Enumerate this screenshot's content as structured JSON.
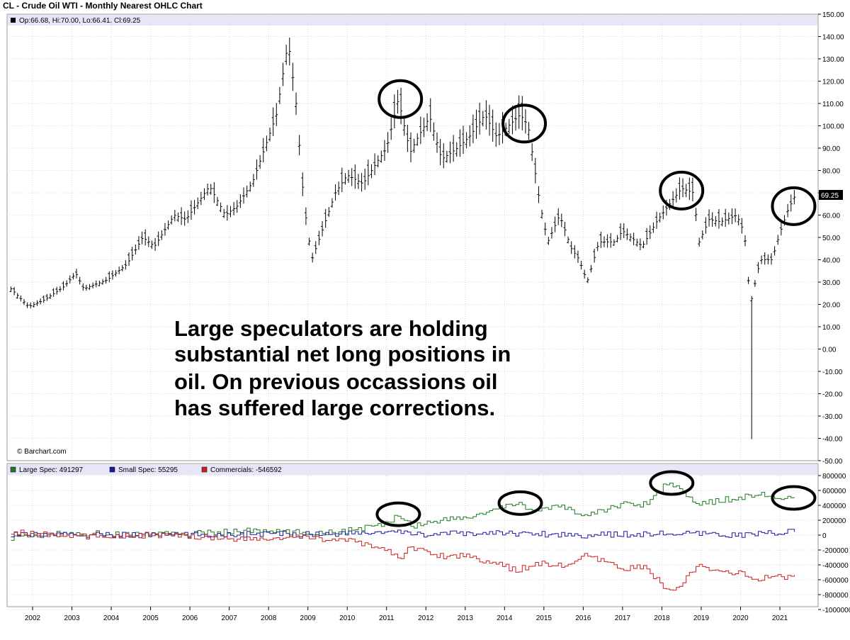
{
  "title": "CL - Crude Oil WTI - Monthly Nearest OHLC Chart",
  "ohlc_readout": "Op:66.68, Hi:70.00, Lo:66.41, Cl:69.25",
  "last_price_label": "69.25",
  "watermark": "© Barchart.com",
  "annotation_lines": [
    "Large speculators are holding",
    "substantial net long positions in",
    "oil. On previous occassions oil",
    "has suffered large corrections."
  ],
  "legend": [
    {
      "label": "Large Spec: 491297",
      "color": "#1f7a1f"
    },
    {
      "label": "Small Spec: 55295",
      "color": "#1a1aa0"
    },
    {
      "label": "Commercials: -546592",
      "color": "#cc1f1f"
    }
  ],
  "colors": {
    "header_band": "#e6e6f8",
    "grid": "#d9d9d9",
    "bars": "#000000",
    "circle": "#000000"
  },
  "chart_data": [
    {
      "type": "ohlc",
      "title": "CL - Crude Oil WTI - Monthly Nearest OHLC Chart",
      "ylim": [
        -50,
        150
      ],
      "y_ticks": [
        "150.00",
        "140.00",
        "130.00",
        "120.00",
        "110.00",
        "100.00",
        "90.00",
        "80.00",
        "70.00",
        "60.00",
        "50.00",
        "40.00",
        "30.00",
        "20.00",
        "10.00",
        "0.00",
        "-10.00",
        "-20.00",
        "-30.00",
        "-40.00",
        "-50.00"
      ],
      "x_ticks": [
        "2002",
        "2003",
        "2004",
        "2005",
        "2006",
        "2007",
        "2008",
        "2009",
        "2010",
        "2011",
        "2012",
        "2013",
        "2014",
        "2015",
        "2016",
        "2017",
        "2018",
        "2019",
        "2020",
        "2021"
      ],
      "x_start_year": 2001.45,
      "close_path": [
        [
          2001.45,
          27
        ],
        [
          2001.9,
          19
        ],
        [
          2002.3,
          22
        ],
        [
          2002.8,
          28
        ],
        [
          2003.1,
          34
        ],
        [
          2003.3,
          27
        ],
        [
          2003.9,
          31
        ],
        [
          2004.4,
          38
        ],
        [
          2004.8,
          50
        ],
        [
          2005.1,
          46
        ],
        [
          2005.6,
          60
        ],
        [
          2005.9,
          58
        ],
        [
          2006.5,
          73
        ],
        [
          2006.9,
          60
        ],
        [
          2007.2,
          64
        ],
        [
          2007.6,
          75
        ],
        [
          2007.9,
          90
        ],
        [
          2008.2,
          105
        ],
        [
          2008.5,
          138
        ],
        [
          2008.7,
          110
        ],
        [
          2008.9,
          65
        ],
        [
          2009.1,
          40
        ],
        [
          2009.4,
          55
        ],
        [
          2009.7,
          70
        ],
        [
          2010.0,
          78
        ],
        [
          2010.4,
          74
        ],
        [
          2010.8,
          85
        ],
        [
          2011.0,
          90
        ],
        [
          2011.3,
          112
        ],
        [
          2011.6,
          88
        ],
        [
          2011.8,
          95
        ],
        [
          2012.1,
          104
        ],
        [
          2012.4,
          85
        ],
        [
          2012.8,
          90
        ],
        [
          2013.1,
          95
        ],
        [
          2013.5,
          105
        ],
        [
          2013.8,
          95
        ],
        [
          2014.1,
          100
        ],
        [
          2014.4,
          105
        ],
        [
          2014.6,
          100
        ],
        [
          2014.9,
          65
        ],
        [
          2015.1,
          48
        ],
        [
          2015.4,
          60
        ],
        [
          2015.7,
          45
        ],
        [
          2015.9,
          40
        ],
        [
          2016.1,
          30
        ],
        [
          2016.4,
          48
        ],
        [
          2016.8,
          48
        ],
        [
          2017.0,
          53
        ],
        [
          2017.5,
          46
        ],
        [
          2017.9,
          58
        ],
        [
          2018.2,
          65
        ],
        [
          2018.5,
          72
        ],
        [
          2018.8,
          70
        ],
        [
          2018.95,
          48
        ],
        [
          2019.2,
          58
        ],
        [
          2019.5,
          57
        ],
        [
          2019.9,
          60
        ],
        [
          2020.1,
          52
        ],
        [
          2020.25,
          20
        ],
        [
          2020.5,
          40
        ],
        [
          2020.8,
          40
        ],
        [
          2021.0,
          52
        ],
        [
          2021.2,
          62
        ],
        [
          2021.4,
          69.25
        ]
      ],
      "min_spike": {
        "x": 2020.3,
        "low": -40.3
      }
    },
    {
      "type": "line",
      "title": "Commitments of Traders",
      "ylim": [
        -1000000,
        800000
      ],
      "y_ticks": [
        "800000",
        "600000",
        "400000",
        "200000",
        "0",
        "-200000",
        "-400000",
        "-600000",
        "-800000",
        "-1000000"
      ],
      "series": [
        {
          "name": "Large Spec",
          "color": "#1f7a1f",
          "path": [
            [
              2001.45,
              -30000
            ],
            [
              2003.0,
              30000
            ],
            [
              2004.5,
              10000
            ],
            [
              2006.0,
              20000
            ],
            [
              2007.5,
              60000
            ],
            [
              2009.0,
              30000
            ],
            [
              2010.0,
              60000
            ],
            [
              2010.7,
              120000
            ],
            [
              2011.0,
              150000
            ],
            [
              2011.3,
              300000
            ],
            [
              2011.6,
              120000
            ],
            [
              2012.3,
              200000
            ],
            [
              2013.0,
              230000
            ],
            [
              2013.7,
              330000
            ],
            [
              2014.3,
              430000
            ],
            [
              2014.8,
              330000
            ],
            [
              2015.5,
              380000
            ],
            [
              2016.0,
              260000
            ],
            [
              2016.5,
              330000
            ],
            [
              2017.0,
              430000
            ],
            [
              2017.5,
              400000
            ],
            [
              2017.9,
              580000
            ],
            [
              2018.1,
              700000
            ],
            [
              2018.5,
              620000
            ],
            [
              2018.9,
              400000
            ],
            [
              2019.3,
              450000
            ],
            [
              2019.9,
              500000
            ],
            [
              2020.4,
              550000
            ],
            [
              2020.8,
              520000
            ],
            [
              2021.1,
              480000
            ],
            [
              2021.4,
              491297
            ]
          ]
        },
        {
          "name": "Small Spec",
          "color": "#1a1aa0",
          "path": [
            [
              2001.45,
              10000
            ],
            [
              2004.0,
              0
            ],
            [
              2007.0,
              10000
            ],
            [
              2010.0,
              20000
            ],
            [
              2011.0,
              40000
            ],
            [
              2012.0,
              10000
            ],
            [
              2014.0,
              30000
            ],
            [
              2016.0,
              0
            ],
            [
              2018.0,
              20000
            ],
            [
              2020.0,
              0
            ],
            [
              2021.4,
              55295
            ]
          ]
        },
        {
          "name": "Commercials",
          "color": "#cc1f1f",
          "path": [
            [
              2001.45,
              40000
            ],
            [
              2003.0,
              -20000
            ],
            [
              2004.5,
              0
            ],
            [
              2006.0,
              -10000
            ],
            [
              2007.5,
              -60000
            ],
            [
              2009.0,
              -30000
            ],
            [
              2010.0,
              -80000
            ],
            [
              2010.7,
              -150000
            ],
            [
              2011.0,
              -200000
            ],
            [
              2011.3,
              -330000
            ],
            [
              2011.6,
              -150000
            ],
            [
              2012.3,
              -280000
            ],
            [
              2013.0,
              -270000
            ],
            [
              2013.7,
              -370000
            ],
            [
              2014.3,
              -480000
            ],
            [
              2014.8,
              -370000
            ],
            [
              2015.5,
              -420000
            ],
            [
              2016.0,
              -280000
            ],
            [
              2016.5,
              -360000
            ],
            [
              2017.0,
              -450000
            ],
            [
              2017.5,
              -420000
            ],
            [
              2017.9,
              -620000
            ],
            [
              2018.1,
              -760000
            ],
            [
              2018.5,
              -640000
            ],
            [
              2018.9,
              -420000
            ],
            [
              2019.3,
              -480000
            ],
            [
              2019.9,
              -500000
            ],
            [
              2020.4,
              -600000
            ],
            [
              2020.8,
              -560000
            ],
            [
              2021.1,
              -560000
            ],
            [
              2021.4,
              -546592
            ]
          ]
        }
      ]
    }
  ],
  "circles": [
    {
      "panel": "price",
      "x": 2011.35,
      "y": 112
    },
    {
      "panel": "price",
      "x": 2014.5,
      "y": 101
    },
    {
      "panel": "price",
      "x": 2018.5,
      "y": 71
    },
    {
      "panel": "price",
      "x": 2021.35,
      "y": 64
    },
    {
      "panel": "cot",
      "x": 2011.3,
      "y": 280000
    },
    {
      "panel": "cot",
      "x": 2014.4,
      "y": 430000
    },
    {
      "panel": "cot",
      "x": 2018.25,
      "y": 700000
    },
    {
      "panel": "cot",
      "x": 2021.35,
      "y": 500000
    }
  ]
}
